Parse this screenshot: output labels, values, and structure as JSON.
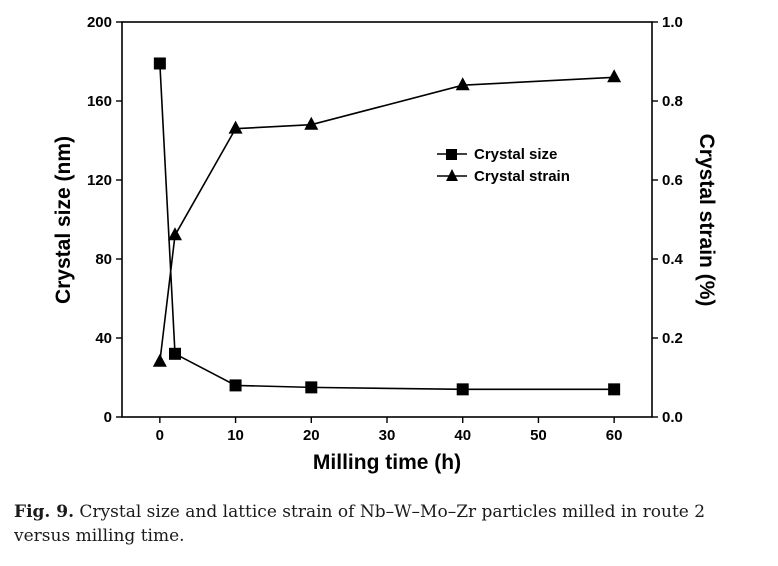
{
  "chart_data": {
    "type": "line",
    "x": [
      0,
      2,
      10,
      20,
      40,
      60
    ],
    "x_ticks": [
      "0",
      "10",
      "20",
      "30",
      "40",
      "50",
      "60"
    ],
    "xlabel": "Milling time (h)",
    "xlim": [
      -5,
      65
    ],
    "ylabel_left": "Crystal size (nm)",
    "ylim_left": [
      0,
      200
    ],
    "y_ticks_left": [
      "0",
      "40",
      "80",
      "120",
      "160",
      "200"
    ],
    "ylabel_right": "Crystal strain (%)",
    "ylim_right": [
      0,
      1.0
    ],
    "y_ticks_right": [
      "0.0",
      "0.2",
      "0.4",
      "0.6",
      "0.8",
      "1.0"
    ],
    "grid": false,
    "legend_position": "center-right",
    "series": [
      {
        "name": "Crystal size",
        "marker": "square",
        "axis": "left",
        "values": [
          179,
          32,
          16,
          15,
          14,
          14
        ]
      },
      {
        "name": "Crystal strain",
        "marker": "triangle",
        "axis": "right",
        "values": [
          0.14,
          0.46,
          0.73,
          0.74,
          0.84,
          0.86
        ]
      }
    ]
  },
  "caption": {
    "label": "Fig. 9.",
    "text": " Crystal size and lattice strain of Nb–W–Mo–Zr particles milled in route 2 versus milling time."
  }
}
